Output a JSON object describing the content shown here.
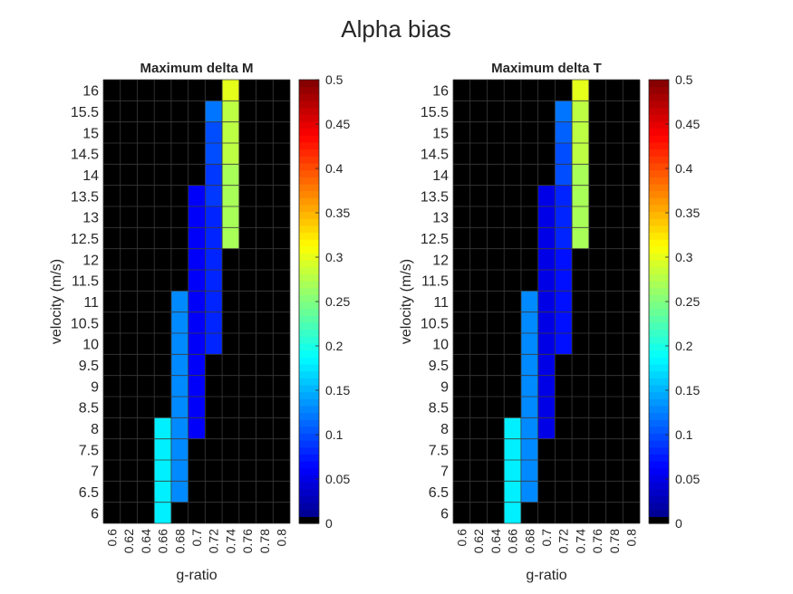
{
  "figure": {
    "title": "Alpha bias"
  },
  "chart_data": [
    {
      "type": "heatmap",
      "title": "Maximum delta M",
      "xlabel": "g-ratio",
      "ylabel": "velocity (m/s)",
      "x": [
        "0.6",
        "0.62",
        "0.64",
        "0.66",
        "0.68",
        "0.7",
        "0.72",
        "0.74",
        "0.76",
        "0.78",
        "0.8"
      ],
      "y": [
        "6",
        "6.5",
        "7",
        "7.5",
        "8",
        "8.5",
        "9",
        "9.5",
        "10",
        "10.5",
        "11",
        "11.5",
        "12",
        "12.5",
        "13",
        "13.5",
        "14",
        "14.5",
        "15",
        "15.5",
        "16"
      ],
      "clim": [
        0,
        0.5
      ],
      "colorbar_ticks": [
        "0",
        "0.05",
        "0.1",
        "0.15",
        "0.2",
        "0.25",
        "0.3",
        "0.35",
        "0.4",
        "0.45",
        "0.5"
      ],
      "colormap": "jet",
      "zero_color": "#000000",
      "grid": true,
      "cells": [
        {
          "x": "0.66",
          "y": "6",
          "value": 0.18
        },
        {
          "x": "0.66",
          "y": "6.5",
          "value": 0.18
        },
        {
          "x": "0.66",
          "y": "7",
          "value": 0.18
        },
        {
          "x": "0.66",
          "y": "7.5",
          "value": 0.18
        },
        {
          "x": "0.66",
          "y": "8",
          "value": 0.18
        },
        {
          "x": "0.68",
          "y": "6.5",
          "value": 0.13
        },
        {
          "x": "0.68",
          "y": "7",
          "value": 0.13
        },
        {
          "x": "0.68",
          "y": "7.5",
          "value": 0.13
        },
        {
          "x": "0.68",
          "y": "8",
          "value": 0.13
        },
        {
          "x": "0.68",
          "y": "8.5",
          "value": 0.13
        },
        {
          "x": "0.68",
          "y": "9",
          "value": 0.13
        },
        {
          "x": "0.68",
          "y": "9.5",
          "value": 0.13
        },
        {
          "x": "0.68",
          "y": "10",
          "value": 0.13
        },
        {
          "x": "0.68",
          "y": "10.5",
          "value": 0.13
        },
        {
          "x": "0.68",
          "y": "11",
          "value": 0.13
        },
        {
          "x": "0.7",
          "y": "8",
          "value": 0.06
        },
        {
          "x": "0.7",
          "y": "8.5",
          "value": 0.06
        },
        {
          "x": "0.7",
          "y": "9",
          "value": 0.06
        },
        {
          "x": "0.7",
          "y": "9.5",
          "value": 0.06
        },
        {
          "x": "0.7",
          "y": "10",
          "value": 0.06
        },
        {
          "x": "0.7",
          "y": "10.5",
          "value": 0.06
        },
        {
          "x": "0.7",
          "y": "11",
          "value": 0.06
        },
        {
          "x": "0.7",
          "y": "11.5",
          "value": 0.06
        },
        {
          "x": "0.7",
          "y": "12",
          "value": 0.06
        },
        {
          "x": "0.7",
          "y": "12.5",
          "value": 0.06
        },
        {
          "x": "0.7",
          "y": "13",
          "value": 0.06
        },
        {
          "x": "0.7",
          "y": "13.5",
          "value": 0.06
        },
        {
          "x": "0.72",
          "y": "10",
          "value": 0.08
        },
        {
          "x": "0.72",
          "y": "10.5",
          "value": 0.08
        },
        {
          "x": "0.72",
          "y": "11",
          "value": 0.08
        },
        {
          "x": "0.72",
          "y": "11.5",
          "value": 0.08
        },
        {
          "x": "0.72",
          "y": "12",
          "value": 0.08
        },
        {
          "x": "0.72",
          "y": "12.5",
          "value": 0.08
        },
        {
          "x": "0.72",
          "y": "13",
          "value": 0.08
        },
        {
          "x": "0.72",
          "y": "13.5",
          "value": 0.09
        },
        {
          "x": "0.72",
          "y": "14",
          "value": 0.09
        },
        {
          "x": "0.72",
          "y": "14.5",
          "value": 0.1
        },
        {
          "x": "0.72",
          "y": "15",
          "value": 0.1
        },
        {
          "x": "0.72",
          "y": "15.5",
          "value": 0.12
        },
        {
          "x": "0.74",
          "y": "12.5",
          "value": 0.27
        },
        {
          "x": "0.74",
          "y": "13",
          "value": 0.27
        },
        {
          "x": "0.74",
          "y": "13.5",
          "value": 0.27
        },
        {
          "x": "0.74",
          "y": "14",
          "value": 0.27
        },
        {
          "x": "0.74",
          "y": "14.5",
          "value": 0.28
        },
        {
          "x": "0.74",
          "y": "15",
          "value": 0.28
        },
        {
          "x": "0.74",
          "y": "15.5",
          "value": 0.28
        },
        {
          "x": "0.74",
          "y": "16",
          "value": 0.3
        }
      ]
    },
    {
      "type": "heatmap",
      "title": "Maximum delta T",
      "xlabel": "g-ratio",
      "ylabel": "velocity (m/s)",
      "x": [
        "0.6",
        "0.62",
        "0.64",
        "0.66",
        "0.68",
        "0.7",
        "0.72",
        "0.74",
        "0.76",
        "0.78",
        "0.8"
      ],
      "y": [
        "6",
        "6.5",
        "7",
        "7.5",
        "8",
        "8.5",
        "9",
        "9.5",
        "10",
        "10.5",
        "11",
        "11.5",
        "12",
        "12.5",
        "13",
        "13.5",
        "14",
        "14.5",
        "15",
        "15.5",
        "16"
      ],
      "clim": [
        0,
        0.5
      ],
      "colorbar_ticks": [
        "0",
        "0.05",
        "0.1",
        "0.15",
        "0.2",
        "0.25",
        "0.3",
        "0.35",
        "0.4",
        "0.45",
        "0.5"
      ],
      "colormap": "jet",
      "zero_color": "#000000",
      "grid": true,
      "cells": [
        {
          "x": "0.66",
          "y": "6",
          "value": 0.18
        },
        {
          "x": "0.66",
          "y": "6.5",
          "value": 0.18
        },
        {
          "x": "0.66",
          "y": "7",
          "value": 0.18
        },
        {
          "x": "0.66",
          "y": "7.5",
          "value": 0.18
        },
        {
          "x": "0.66",
          "y": "8",
          "value": 0.18
        },
        {
          "x": "0.68",
          "y": "6.5",
          "value": 0.13
        },
        {
          "x": "0.68",
          "y": "7",
          "value": 0.13
        },
        {
          "x": "0.68",
          "y": "7.5",
          "value": 0.13
        },
        {
          "x": "0.68",
          "y": "8",
          "value": 0.13
        },
        {
          "x": "0.68",
          "y": "8.5",
          "value": 0.13
        },
        {
          "x": "0.68",
          "y": "9",
          "value": 0.13
        },
        {
          "x": "0.68",
          "y": "9.5",
          "value": 0.13
        },
        {
          "x": "0.68",
          "y": "10",
          "value": 0.13
        },
        {
          "x": "0.68",
          "y": "10.5",
          "value": 0.13
        },
        {
          "x": "0.68",
          "y": "11",
          "value": 0.13
        },
        {
          "x": "0.7",
          "y": "8",
          "value": 0.05
        },
        {
          "x": "0.7",
          "y": "8.5",
          "value": 0.05
        },
        {
          "x": "0.7",
          "y": "9",
          "value": 0.05
        },
        {
          "x": "0.7",
          "y": "9.5",
          "value": 0.05
        },
        {
          "x": "0.7",
          "y": "10",
          "value": 0.05
        },
        {
          "x": "0.7",
          "y": "10.5",
          "value": 0.05
        },
        {
          "x": "0.7",
          "y": "11",
          "value": 0.05
        },
        {
          "x": "0.7",
          "y": "11.5",
          "value": 0.05
        },
        {
          "x": "0.7",
          "y": "12",
          "value": 0.05
        },
        {
          "x": "0.7",
          "y": "12.5",
          "value": 0.05
        },
        {
          "x": "0.7",
          "y": "13",
          "value": 0.05
        },
        {
          "x": "0.7",
          "y": "13.5",
          "value": 0.05
        },
        {
          "x": "0.72",
          "y": "10",
          "value": 0.07
        },
        {
          "x": "0.72",
          "y": "10.5",
          "value": 0.07
        },
        {
          "x": "0.72",
          "y": "11",
          "value": 0.07
        },
        {
          "x": "0.72",
          "y": "11.5",
          "value": 0.07
        },
        {
          "x": "0.72",
          "y": "12",
          "value": 0.07
        },
        {
          "x": "0.72",
          "y": "12.5",
          "value": 0.08
        },
        {
          "x": "0.72",
          "y": "13",
          "value": 0.08
        },
        {
          "x": "0.72",
          "y": "13.5",
          "value": 0.08
        },
        {
          "x": "0.72",
          "y": "14",
          "value": 0.1
        },
        {
          "x": "0.72",
          "y": "14.5",
          "value": 0.1
        },
        {
          "x": "0.72",
          "y": "15",
          "value": 0.11
        },
        {
          "x": "0.72",
          "y": "15.5",
          "value": 0.12
        },
        {
          "x": "0.74",
          "y": "12.5",
          "value": 0.27
        },
        {
          "x": "0.74",
          "y": "13",
          "value": 0.27
        },
        {
          "x": "0.74",
          "y": "13.5",
          "value": 0.27
        },
        {
          "x": "0.74",
          "y": "14",
          "value": 0.27
        },
        {
          "x": "0.74",
          "y": "14.5",
          "value": 0.28
        },
        {
          "x": "0.74",
          "y": "15",
          "value": 0.28
        },
        {
          "x": "0.74",
          "y": "15.5",
          "value": 0.28
        },
        {
          "x": "0.74",
          "y": "16",
          "value": 0.3
        }
      ]
    }
  ]
}
